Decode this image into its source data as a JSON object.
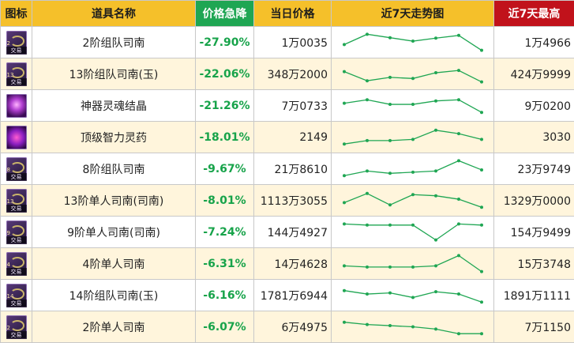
{
  "headers": {
    "icon": "图标",
    "name": "道具名称",
    "drop": "价格急降",
    "today": "当日价格",
    "trend": "近7天走势图",
    "max7": "近7天最高"
  },
  "colors": {
    "header_bg": "#f5c02a",
    "drop_header_bg": "#1fa653",
    "max_header_bg": "#c1121b",
    "drop_text": "#17a34a",
    "trend_line": "#1fa653",
    "row_alt_bg": "#fff5dc"
  },
  "rows": [
    {
      "icon": "purple-item-icon",
      "icon_tag": "交易",
      "icon_num": "2",
      "name": "2阶组队司南",
      "drop": "-27.90%",
      "price": "1万0035",
      "high": "1万4966",
      "trend": [
        40,
        85,
        70,
        55,
        68,
        80,
        15
      ]
    },
    {
      "icon": "purple-item-icon",
      "icon_tag": "交易",
      "icon_num": "13",
      "name": "13阶组队司南(玉)",
      "drop": "-22.06%",
      "price": "348万2000",
      "high": "424万9999",
      "trend": [
        60,
        20,
        35,
        30,
        55,
        65,
        15
      ]
    },
    {
      "icon": "soul-crystal-icon",
      "icon_tag": "",
      "icon_num": "",
      "name": "神器灵魂结晶",
      "drop": "-21.26%",
      "price": "7万0733",
      "high": "9万0200",
      "trend": [
        60,
        75,
        55,
        55,
        70,
        75,
        20
      ]
    },
    {
      "icon": "elixir-icon",
      "icon_tag": "",
      "icon_num": "",
      "name": "顶级智力灵药",
      "drop": "-18.01%",
      "price": "2149",
      "high": "3030",
      "trend": [
        20,
        35,
        35,
        40,
        80,
        65,
        40
      ]
    },
    {
      "icon": "purple-item-icon",
      "icon_tag": "交易",
      "icon_num": "8",
      "name": "8阶组队司南",
      "drop": "-9.67%",
      "price": "21万8610",
      "high": "23万9749",
      "trend": [
        20,
        40,
        30,
        35,
        40,
        85,
        45
      ]
    },
    {
      "icon": "purple-item-icon",
      "icon_tag": "交易",
      "icon_num": "13",
      "name": "13阶单人司南(司南)",
      "drop": "-8.01%",
      "price": "1113万3055",
      "high": "1329万0000",
      "trend": [
        40,
        80,
        30,
        75,
        70,
        55,
        20
      ]
    },
    {
      "icon": "purple-item-icon",
      "icon_tag": "交易",
      "icon_num": "9",
      "name": "9阶单人司南(司南)",
      "drop": "-7.24%",
      "price": "144万4927",
      "high": "154万9499",
      "trend": [
        85,
        80,
        80,
        80,
        15,
        85,
        80
      ]
    },
    {
      "icon": "purple-item-icon",
      "icon_tag": "交易",
      "icon_num": "4",
      "name": "4阶单人司南",
      "drop": "-6.31%",
      "price": "14万4628",
      "high": "15万3748",
      "trend": [
        40,
        35,
        35,
        35,
        40,
        85,
        15
      ]
    },
    {
      "icon": "purple-item-icon",
      "icon_tag": "交易",
      "icon_num": "14",
      "name": "14阶组队司南(玉)",
      "drop": "-6.16%",
      "price": "1781万6944",
      "high": "1891万1111",
      "trend": [
        70,
        55,
        60,
        40,
        65,
        55,
        20
      ]
    },
    {
      "icon": "purple-item-icon",
      "icon_tag": "交易",
      "icon_num": "2",
      "name": "2阶单人司南",
      "drop": "-6.07%",
      "price": "6万4975",
      "high": "7万1150",
      "trend": [
        70,
        60,
        55,
        50,
        40,
        20,
        20
      ]
    }
  ]
}
